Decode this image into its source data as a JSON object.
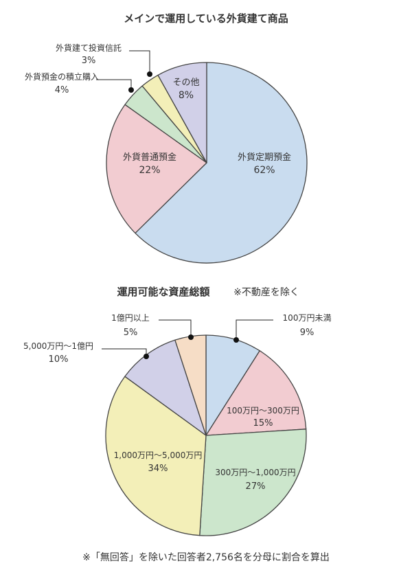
{
  "chart_data": [
    {
      "type": "pie",
      "title": "メインで運用している外貨建て商品",
      "slices": [
        {
          "label": "外貨定期預金",
          "value": 62,
          "value_label": "62%",
          "color": "#c9dcef"
        },
        {
          "label": "外貨普通預金",
          "value": 22,
          "value_label": "22%",
          "color": "#f2ccd1"
        },
        {
          "label": "外貨預金の積立購入",
          "value": 4,
          "value_label": "4%",
          "color": "#cce6cc"
        },
        {
          "label": "外貨建て投資信託",
          "value": 3,
          "value_label": "3%",
          "color": "#f3efb8"
        },
        {
          "label": "その他",
          "value": 8,
          "value_label": "8%",
          "color": "#d1d0e8"
        }
      ]
    },
    {
      "type": "pie",
      "title": "運用可能な資産総額",
      "subtitle": "※不動産を除く",
      "slices": [
        {
          "label": "100万円未満",
          "value": 9,
          "value_label": "9%",
          "color": "#c9dcef"
        },
        {
          "label": "100万円～300万円",
          "value": 15,
          "value_label": "15%",
          "color": "#f2ccd1"
        },
        {
          "label": "300万円～1,000万円",
          "value": 27,
          "value_label": "27%",
          "color": "#cce6cc"
        },
        {
          "label": "1,000万円～5,000万円",
          "value": 34,
          "value_label": "34%",
          "color": "#f3efb8"
        },
        {
          "label": "5,000万円～1億円",
          "value": 10,
          "value_label": "10%",
          "color": "#d1d0e8"
        },
        {
          "label": "1億円以上",
          "value": 5,
          "value_label": "5%",
          "color": "#f6ddc6"
        }
      ]
    }
  ],
  "footnote": "※「無回答」を除いた回答者2,756名を分母に割合を算出",
  "colors": {
    "stroke": "#444444",
    "text": "#333333"
  }
}
